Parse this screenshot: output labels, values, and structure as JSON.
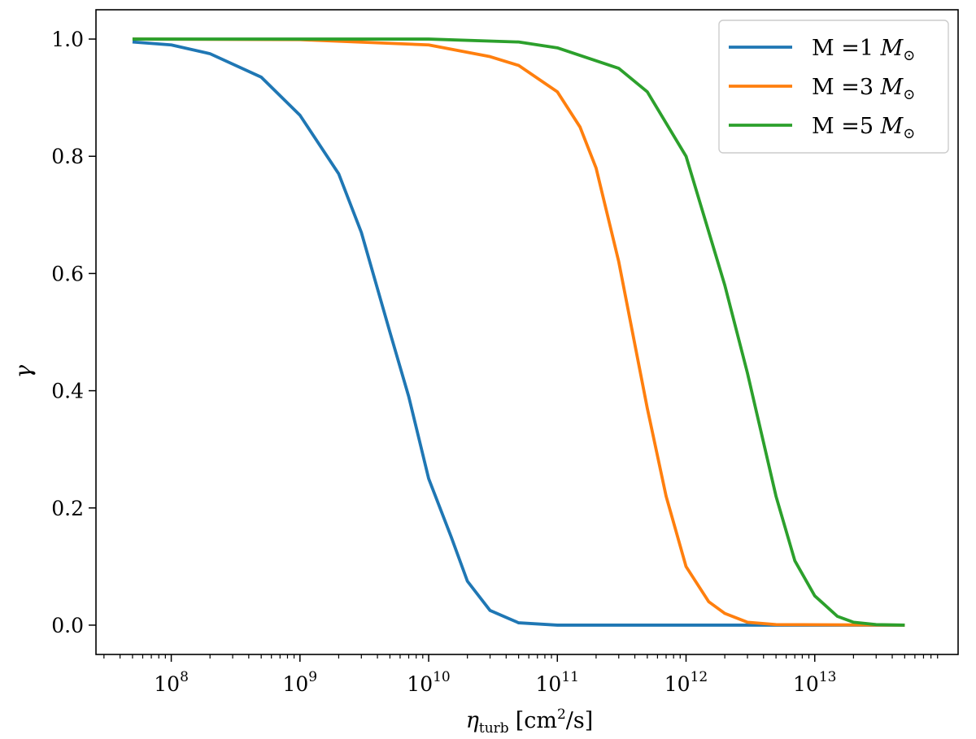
{
  "chart_data": {
    "type": "line",
    "xlabel": {
      "main": "η",
      "sub": "turb",
      "rest": "[cm",
      "sup": "2",
      "tail": "/s]"
    },
    "ylabel": "γ",
    "x_scale": "log",
    "xlim": [
      26000000,
      130000000000000
    ],
    "ylim": [
      -0.05,
      1.05
    ],
    "x_major_ticks": [
      {
        "value": 100000000,
        "base": "10",
        "exp": "8"
      },
      {
        "value": 1000000000,
        "base": "10",
        "exp": "9"
      },
      {
        "value": 10000000000,
        "base": "10",
        "exp": "10"
      },
      {
        "value": 100000000000,
        "base": "10",
        "exp": "11"
      },
      {
        "value": 1000000000000,
        "base": "10",
        "exp": "12"
      },
      {
        "value": 10000000000000,
        "base": "10",
        "exp": "13"
      }
    ],
    "y_ticks": [
      {
        "value": 0.0,
        "label": "0.0"
      },
      {
        "value": 0.2,
        "label": "0.2"
      },
      {
        "value": 0.4,
        "label": "0.4"
      },
      {
        "value": 0.6,
        "label": "0.6"
      },
      {
        "value": 0.8,
        "label": "0.8"
      },
      {
        "value": 1.0,
        "label": "1.0"
      }
    ],
    "grid": false,
    "legend_position": "top-right",
    "series": [
      {
        "name": "M =1 M⊙",
        "label_prefix": "M =1 ",
        "label_symbol": "M",
        "label_sub": "⊙",
        "color": "#1f77b4",
        "points": [
          [
            50000000,
            0.995
          ],
          [
            100000000,
            0.99
          ],
          [
            200000000,
            0.975
          ],
          [
            500000000,
            0.935
          ],
          [
            1000000000,
            0.87
          ],
          [
            2000000000,
            0.77
          ],
          [
            3000000000,
            0.67
          ],
          [
            5000000000,
            0.5
          ],
          [
            7000000000,
            0.39
          ],
          [
            10000000000,
            0.25
          ],
          [
            15000000000,
            0.15
          ],
          [
            20000000000,
            0.075
          ],
          [
            30000000000,
            0.025
          ],
          [
            50000000000,
            0.004
          ],
          [
            100000000000,
            0.0
          ],
          [
            1000000000000,
            0.0
          ],
          [
            50000000000000,
            0.0
          ]
        ]
      },
      {
        "name": "M =3 M⊙",
        "label_prefix": "M =3 ",
        "label_symbol": "M",
        "label_sub": "⊙",
        "color": "#ff7f0e",
        "points": [
          [
            50000000,
            1.0
          ],
          [
            1000000000,
            0.999
          ],
          [
            10000000000,
            0.99
          ],
          [
            30000000000,
            0.97
          ],
          [
            50000000000,
            0.955
          ],
          [
            100000000000,
            0.91
          ],
          [
            150000000000,
            0.85
          ],
          [
            200000000000,
            0.78
          ],
          [
            300000000000,
            0.62
          ],
          [
            500000000000,
            0.37
          ],
          [
            700000000000,
            0.22
          ],
          [
            1000000000000,
            0.1
          ],
          [
            1500000000000,
            0.04
          ],
          [
            2000000000000,
            0.02
          ],
          [
            3000000000000,
            0.005
          ],
          [
            5000000000000,
            0.001
          ],
          [
            50000000000000,
            0.0
          ]
        ]
      },
      {
        "name": "M =5 M⊙",
        "label_prefix": "M =5 ",
        "label_symbol": "M",
        "label_sub": "⊙",
        "color": "#2ca02c",
        "points": [
          [
            50000000,
            1.0
          ],
          [
            10000000000,
            1.0
          ],
          [
            50000000000,
            0.995
          ],
          [
            100000000000,
            0.985
          ],
          [
            300000000000,
            0.95
          ],
          [
            500000000000,
            0.91
          ],
          [
            1000000000000,
            0.8
          ],
          [
            2000000000000,
            0.58
          ],
          [
            3000000000000,
            0.43
          ],
          [
            5000000000000,
            0.22
          ],
          [
            7000000000000,
            0.11
          ],
          [
            10000000000000,
            0.05
          ],
          [
            15000000000000,
            0.015
          ],
          [
            20000000000000,
            0.005
          ],
          [
            30000000000000,
            0.001
          ],
          [
            50000000000000,
            0.0
          ]
        ]
      }
    ]
  }
}
